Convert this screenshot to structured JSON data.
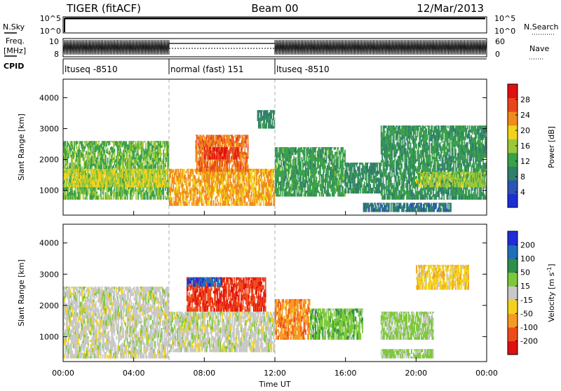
{
  "header": {
    "title": "TIGER (fitACF)",
    "beam": "Beam 00",
    "date": "12/Mar/2013"
  },
  "info_panels": {
    "nsky": {
      "label": "N.Sky",
      "right_label": "N.Search",
      "tick_top": "10^5",
      "tick_bottom": "10^0"
    },
    "freq": {
      "label_line1": "Freq.",
      "label_line2": "[MHz]",
      "right_label": "Nave",
      "ticks_left": [
        "10",
        "8"
      ],
      "ticks_right": [
        "60",
        "0"
      ]
    },
    "cpid": {
      "label": "CPID",
      "segments": [
        {
          "text": "ltuseq -8510",
          "start_hour": 0,
          "end_hour": 6
        },
        {
          "text": "normal (fast) 151",
          "start_hour": 6,
          "end_hour": 12
        },
        {
          "text": "ltuseq -8510",
          "start_hour": 12,
          "end_hour": 24
        }
      ]
    }
  },
  "colors": {
    "power_scale": [
      "#1f2dd6",
      "#2a55b0",
      "#2f7f6a",
      "#3aa04a",
      "#9ac83a",
      "#f2d21c",
      "#f08a1c",
      "#e8451c",
      "#e01010"
    ],
    "velocity_scale": [
      "#e01010",
      "#f04a1a",
      "#f59a22",
      "#f2d21c",
      "#c8c8c8",
      "#7cc83a",
      "#2e8f4a",
      "#1f6fb8",
      "#1f2dd6"
    ]
  },
  "chart_data": [
    {
      "type": "heatmap",
      "name": "power",
      "ylabel": "Slant Range [km]",
      "yticks": [
        "1000",
        "2000",
        "3000",
        "4000"
      ],
      "ylim": [
        200,
        4600
      ],
      "xlim": [
        0,
        24
      ],
      "colorbar": {
        "label": "Power [dB]",
        "ticks": [
          "4",
          "8",
          "12",
          "16",
          "20",
          "24",
          "28"
        ],
        "range": [
          0,
          32
        ]
      },
      "regions": [
        {
          "x": [
            0,
            6
          ],
          "y": [
            700,
            2600
          ],
          "value": 14
        },
        {
          "x": [
            0,
            6
          ],
          "y": [
            1100,
            1700
          ],
          "value": 18
        },
        {
          "x": [
            6,
            12
          ],
          "y": [
            500,
            1700
          ],
          "value": 22
        },
        {
          "x": [
            7.5,
            10.5
          ],
          "y": [
            1600,
            2800
          ],
          "value": 24
        },
        {
          "x": [
            8,
            10
          ],
          "y": [
            2000,
            2400
          ],
          "value": 28
        },
        {
          "x": [
            11,
            12
          ],
          "y": [
            3000,
            3600
          ],
          "value": 10
        },
        {
          "x": [
            12,
            16
          ],
          "y": [
            800,
            2400
          ],
          "value": 12
        },
        {
          "x": [
            16,
            18
          ],
          "y": [
            900,
            1900
          ],
          "value": 10
        },
        {
          "x": [
            18,
            24
          ],
          "y": [
            700,
            3100
          ],
          "value": 11
        },
        {
          "x": [
            20,
            24
          ],
          "y": [
            1100,
            1600
          ],
          "value": 16
        },
        {
          "x": [
            17,
            22
          ],
          "y": [
            300,
            600
          ],
          "value": 8
        }
      ]
    },
    {
      "type": "heatmap",
      "name": "velocity",
      "xlabel": "Time UT",
      "ylabel": "Slant Range [km]",
      "xticks": [
        "00:00",
        "04:00",
        "08:00",
        "12:00",
        "16:00",
        "20:00",
        "00:00"
      ],
      "yticks": [
        "1000",
        "2000",
        "3000",
        "4000"
      ],
      "ylim": [
        200,
        4600
      ],
      "xlim": [
        0,
        24
      ],
      "colorbar": {
        "label": "Velocity [m s^-1]",
        "ticks": [
          "-200",
          "-100",
          "-50",
          "-15",
          "15",
          "50",
          "100",
          "200"
        ],
        "range": [
          -250,
          250
        ]
      },
      "regions": [
        {
          "x": [
            0,
            6
          ],
          "y": [
            300,
            2600
          ],
          "value": 0
        },
        {
          "x": [
            6,
            12
          ],
          "y": [
            500,
            1800
          ],
          "value": 0
        },
        {
          "x": [
            7,
            11.5
          ],
          "y": [
            1800,
            2900
          ],
          "value": -180
        },
        {
          "x": [
            7,
            9
          ],
          "y": [
            2600,
            2900
          ],
          "value": 180
        },
        {
          "x": [
            12,
            14
          ],
          "y": [
            900,
            2200
          ],
          "value": -120
        },
        {
          "x": [
            14,
            17
          ],
          "y": [
            900,
            1900
          ],
          "value": 60
        },
        {
          "x": [
            18,
            21
          ],
          "y": [
            900,
            1800
          ],
          "value": 40
        },
        {
          "x": [
            20,
            23
          ],
          "y": [
            2500,
            3300
          ],
          "value": -60
        },
        {
          "x": [
            18,
            21
          ],
          "y": [
            300,
            600
          ],
          "value": 40
        }
      ]
    }
  ]
}
